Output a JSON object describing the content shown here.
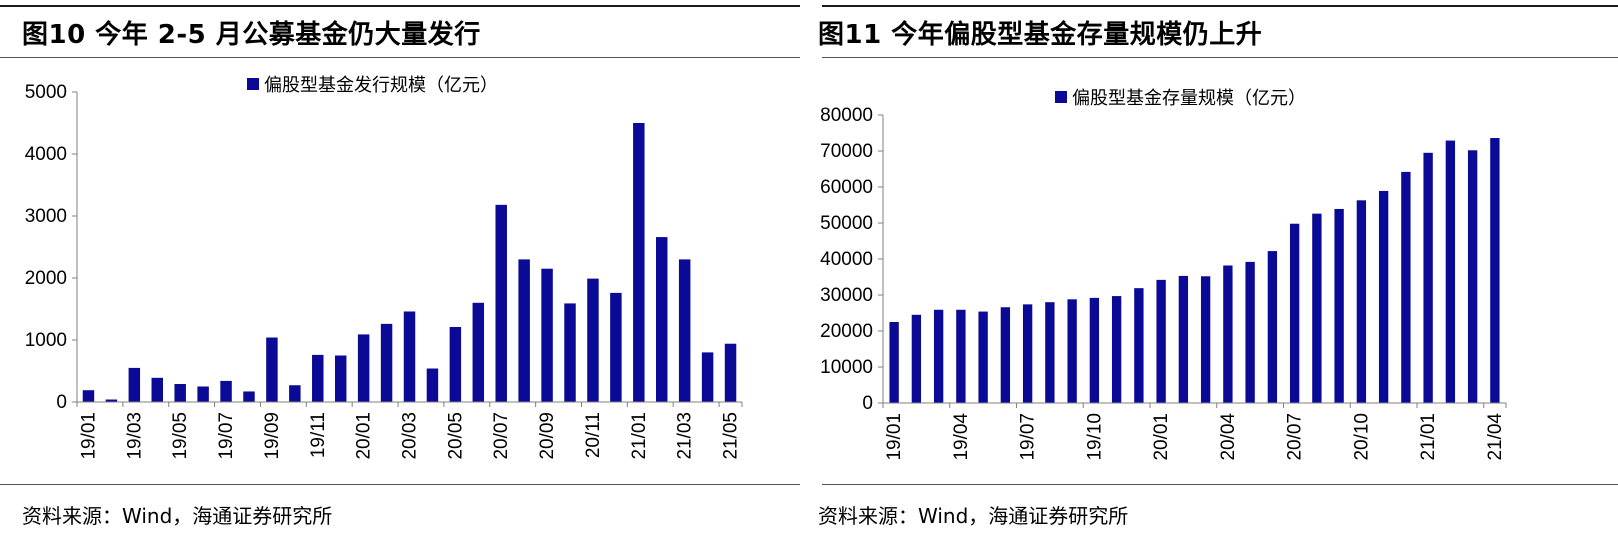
{
  "colors": {
    "bar": "#0a0a96",
    "axis": "#808080"
  },
  "left": {
    "title": "图10   今年 2-5 月公募基金仍大量发行",
    "source": "资料来源：Wind，海通证券研究所",
    "chart_data": {
      "type": "bar",
      "legend": "偏股型基金发行规模（亿元）",
      "legend_position": "top-center",
      "grid": false,
      "ylim": [
        0,
        5000
      ],
      "yticks": [
        0,
        1000,
        2000,
        3000,
        4000,
        5000
      ],
      "categories": [
        "19/01",
        "19/02",
        "19/03",
        "19/04",
        "19/05",
        "19/06",
        "19/07",
        "19/08",
        "19/09",
        "19/10",
        "19/11",
        "19/12",
        "20/01",
        "20/02",
        "20/03",
        "20/04",
        "20/05",
        "20/06",
        "20/07",
        "20/08",
        "20/09",
        "20/10",
        "20/11",
        "20/12",
        "21/01",
        "21/02",
        "21/03",
        "21/04",
        "21/05"
      ],
      "xtick_labels": [
        "19/01",
        "",
        "19/03",
        "",
        "19/05",
        "",
        "19/07",
        "",
        "19/09",
        "",
        "19/11",
        "",
        "20/01",
        "",
        "20/03",
        "",
        "20/05",
        "",
        "20/07",
        "",
        "20/09",
        "",
        "20/11",
        "",
        "21/01",
        "",
        "21/03",
        "",
        "21/05"
      ],
      "values": [
        190,
        40,
        550,
        390,
        290,
        250,
        340,
        170,
        1040,
        270,
        760,
        750,
        1090,
        1260,
        1460,
        540,
        1210,
        1600,
        3180,
        2300,
        2150,
        1590,
        1990,
        1760,
        4500,
        2660,
        2300,
        800,
        940
      ]
    }
  },
  "right": {
    "title": "图11 今年偏股型基金存量规模仍上升",
    "source": "资料来源：Wind，海通证券研究所",
    "chart_data": {
      "type": "bar",
      "legend": "偏股型基金存量规模（亿元）",
      "legend_position": "top-center",
      "grid": false,
      "ylim": [
        0,
        80000
      ],
      "yticks": [
        0,
        10000,
        20000,
        30000,
        40000,
        50000,
        60000,
        70000,
        80000
      ],
      "categories": [
        "19/01",
        "19/02",
        "19/03",
        "19/04",
        "19/05",
        "19/06",
        "19/07",
        "19/08",
        "19/09",
        "19/10",
        "19/11",
        "19/12",
        "20/01",
        "20/02",
        "20/03",
        "20/04",
        "20/05",
        "20/06",
        "20/07",
        "20/08",
        "20/09",
        "20/10",
        "20/11",
        "20/12",
        "21/01",
        "21/02",
        "21/03",
        "21/04"
      ],
      "xtick_labels": [
        "19/01",
        "",
        "",
        "19/04",
        "",
        "",
        "19/07",
        "",
        "",
        "19/10",
        "",
        "",
        "20/01",
        "",
        "",
        "20/04",
        "",
        "",
        "20/07",
        "",
        "",
        "20/10",
        "",
        "",
        "21/01",
        "",
        "",
        "21/04"
      ],
      "values": [
        22500,
        24500,
        25900,
        25900,
        25400,
        26600,
        27400,
        28000,
        28800,
        29200,
        29700,
        31900,
        34200,
        35300,
        35200,
        38200,
        39200,
        42200,
        49800,
        52600,
        53900,
        56300,
        58900,
        64200,
        69500,
        72900,
        70200,
        73600
      ]
    }
  }
}
